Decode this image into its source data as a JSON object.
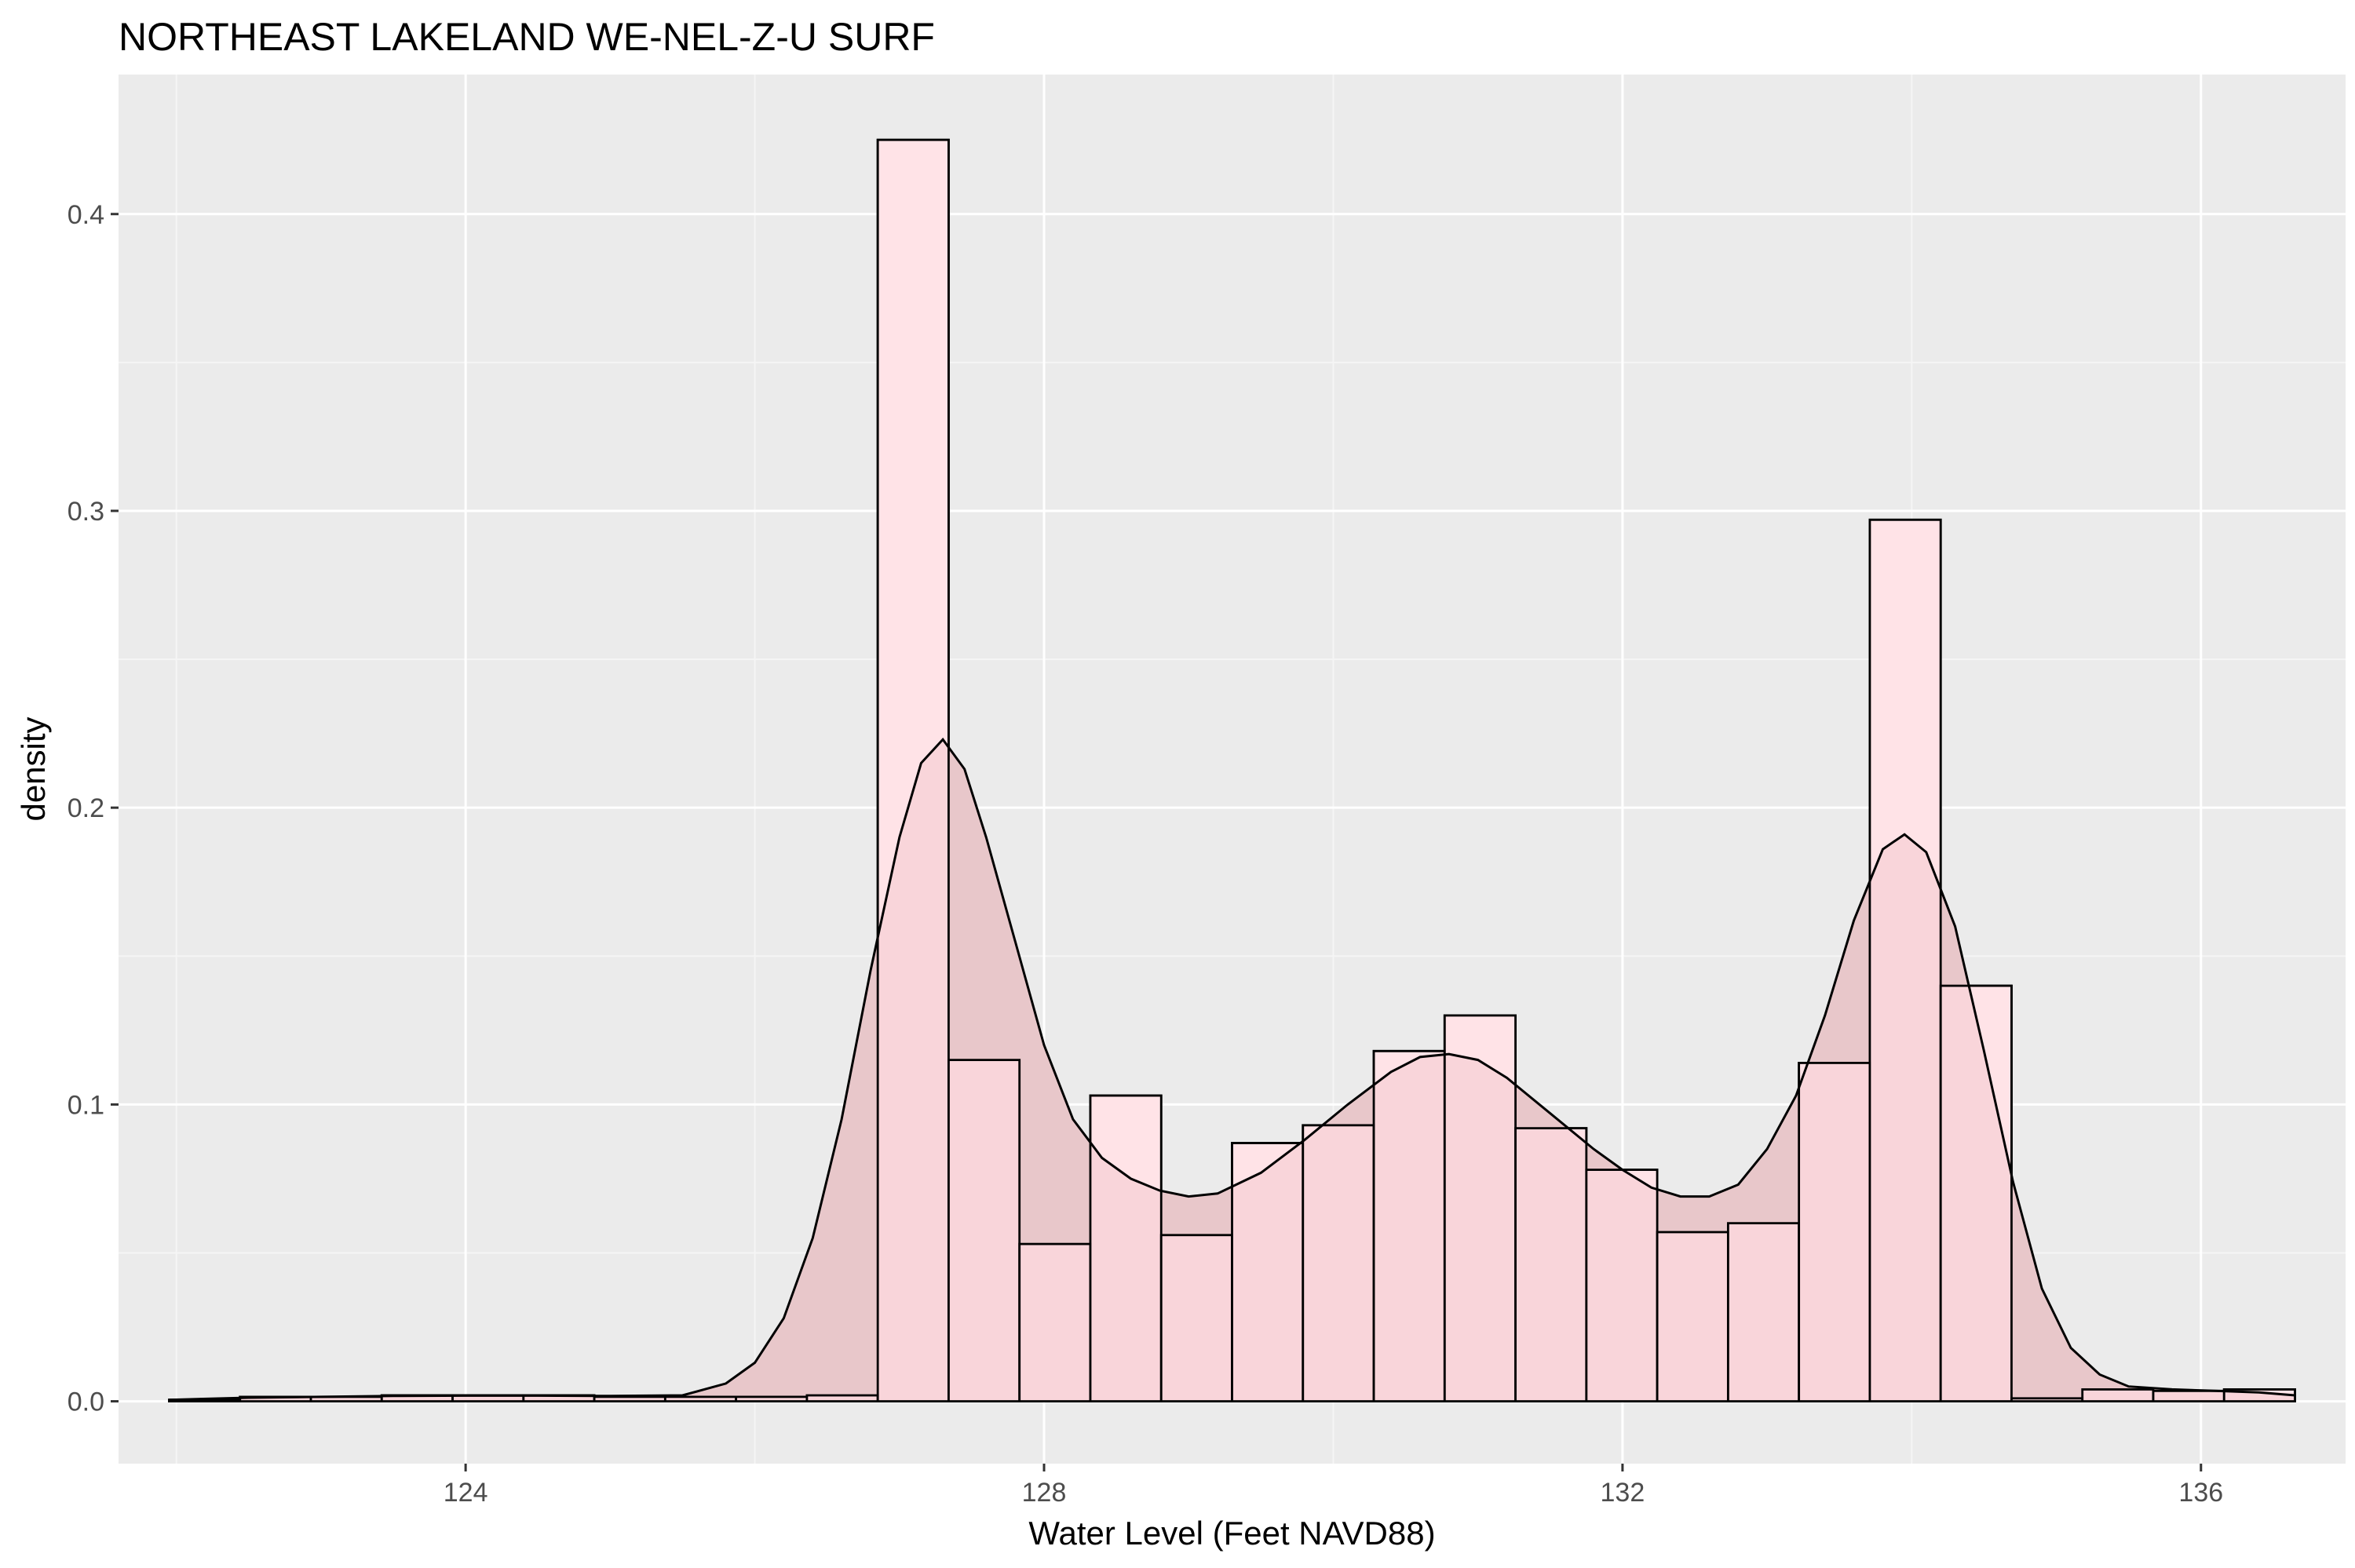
{
  "chart_data": {
    "type": "bar",
    "title": "NORTHEAST LAKELAND WE-NEL-Z-U SURF",
    "xlabel": "Water Level (Feet NAVD88)",
    "ylabel": "density",
    "xlim": [
      121.6,
      137.0
    ],
    "ylim": [
      -0.021,
      0.447
    ],
    "x_ticks": [
      124,
      128,
      132,
      136
    ],
    "y_ticks": [
      0.0,
      0.1,
      0.2,
      0.3,
      0.4
    ],
    "x_tick_labels": [
      "124",
      "128",
      "132",
      "136"
    ],
    "y_tick_labels": [
      "0.0",
      "0.1",
      "0.2",
      "0.3",
      "0.4"
    ],
    "grid": true,
    "colors": {
      "panel_background": "#ebebeb",
      "grid_major": "#ffffff",
      "grid_minor": "#f5f5f5",
      "histogram_outline": "#000000",
      "histogram_fill_open": "#ffffff",
      "histogram_fill_overlay": "#ffdadf",
      "density_fill": "#e8c7ca",
      "density_line": "#000000"
    },
    "histogram": {
      "bin_width": 0.49,
      "bins": [
        {
          "x0": 121.95,
          "x1": 122.44,
          "value": 0.0005
        },
        {
          "x0": 122.44,
          "x1": 122.93,
          "value": 0.0015
        },
        {
          "x0": 122.93,
          "x1": 123.42,
          "value": 0.0015
        },
        {
          "x0": 123.42,
          "x1": 123.91,
          "value": 0.002
        },
        {
          "x0": 123.91,
          "x1": 124.4,
          "value": 0.002
        },
        {
          "x0": 124.4,
          "x1": 124.89,
          "value": 0.002
        },
        {
          "x0": 124.89,
          "x1": 125.38,
          "value": 0.0015
        },
        {
          "x0": 125.38,
          "x1": 125.87,
          "value": 0.0015
        },
        {
          "x0": 125.87,
          "x1": 126.36,
          "value": 0.0015
        },
        {
          "x0": 126.36,
          "x1": 126.85,
          "value": 0.002
        },
        {
          "x0": 126.85,
          "x1": 127.34,
          "value": 0.425
        },
        {
          "x0": 127.34,
          "x1": 127.83,
          "value": 0.115
        },
        {
          "x0": 127.83,
          "x1": 128.32,
          "value": 0.053
        },
        {
          "x0": 128.32,
          "x1": 128.81,
          "value": 0.103
        },
        {
          "x0": 128.81,
          "x1": 129.3,
          "value": 0.056
        },
        {
          "x0": 129.3,
          "x1": 129.79,
          "value": 0.087
        },
        {
          "x0": 129.79,
          "x1": 130.28,
          "value": 0.093
        },
        {
          "x0": 130.28,
          "x1": 130.77,
          "value": 0.118
        },
        {
          "x0": 130.77,
          "x1": 131.26,
          "value": 0.13
        },
        {
          "x0": 131.26,
          "x1": 131.75,
          "value": 0.092
        },
        {
          "x0": 131.75,
          "x1": 132.24,
          "value": 0.078
        },
        {
          "x0": 132.24,
          "x1": 132.73,
          "value": 0.057
        },
        {
          "x0": 132.73,
          "x1": 133.22,
          "value": 0.06
        },
        {
          "x0": 133.22,
          "x1": 133.71,
          "value": 0.114
        },
        {
          "x0": 133.71,
          "x1": 134.2,
          "value": 0.297
        },
        {
          "x0": 134.2,
          "x1": 134.69,
          "value": 0.14
        },
        {
          "x0": 134.69,
          "x1": 135.18,
          "value": 0.001
        },
        {
          "x0": 135.18,
          "x1": 135.67,
          "value": 0.004
        },
        {
          "x0": 135.67,
          "x1": 136.16,
          "value": 0.0035
        },
        {
          "x0": 136.16,
          "x1": 136.65,
          "value": 0.004
        }
      ]
    },
    "density": {
      "x": [
        121.95,
        122.5,
        123.0,
        123.5,
        124.0,
        124.5,
        125.0,
        125.5,
        125.8,
        126.0,
        126.2,
        126.4,
        126.6,
        126.8,
        127.0,
        127.15,
        127.3,
        127.45,
        127.6,
        127.8,
        128.0,
        128.2,
        128.4,
        128.6,
        128.8,
        129.0,
        129.2,
        129.5,
        129.8,
        130.1,
        130.4,
        130.6,
        130.8,
        131.0,
        131.2,
        131.5,
        131.8,
        132.0,
        132.2,
        132.4,
        132.6,
        132.8,
        133.0,
        133.2,
        133.4,
        133.6,
        133.8,
        133.95,
        134.1,
        134.3,
        134.5,
        134.7,
        134.9,
        135.1,
        135.3,
        135.5,
        135.8,
        136.1,
        136.4,
        136.65
      ],
      "y": [
        0.0005,
        0.0012,
        0.0015,
        0.0018,
        0.0019,
        0.0019,
        0.0018,
        0.002,
        0.006,
        0.013,
        0.028,
        0.055,
        0.095,
        0.145,
        0.19,
        0.215,
        0.223,
        0.213,
        0.19,
        0.155,
        0.12,
        0.095,
        0.082,
        0.075,
        0.071,
        0.069,
        0.07,
        0.077,
        0.088,
        0.1,
        0.111,
        0.116,
        0.117,
        0.115,
        0.109,
        0.097,
        0.085,
        0.078,
        0.072,
        0.069,
        0.069,
        0.073,
        0.085,
        0.103,
        0.13,
        0.162,
        0.186,
        0.191,
        0.185,
        0.16,
        0.118,
        0.074,
        0.038,
        0.018,
        0.009,
        0.005,
        0.004,
        0.0035,
        0.003,
        0.002
      ]
    }
  }
}
